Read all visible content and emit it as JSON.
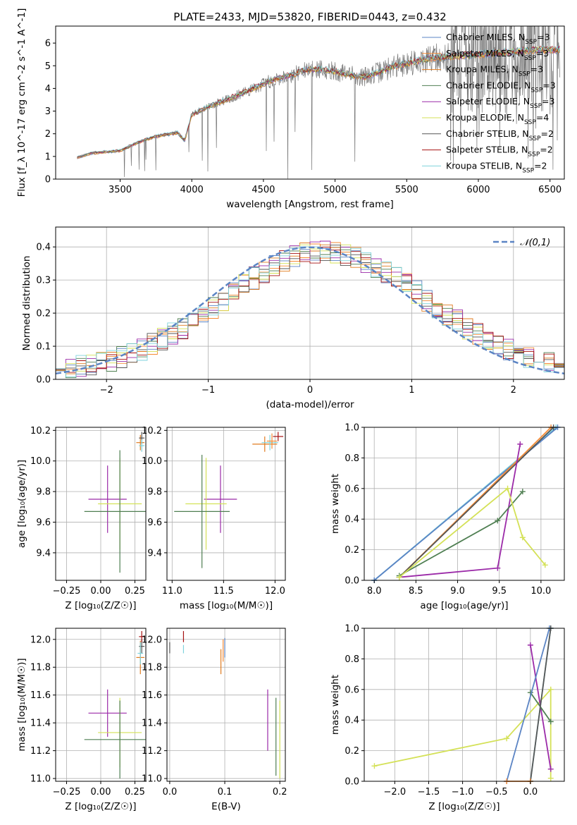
{
  "figure_title": "PLATE=2433, MJD=53820, FIBERID=0443, z=0.432",
  "colors": {
    "chabrier_miles": "#5b84c4",
    "salpeter_miles": "#f58a34",
    "kroupa_miles": "#e07b1f",
    "chabrier_elodie": "#4f7f52",
    "salpeter_elodie": "#9b2aa8",
    "kroupa_elodie": "#d4e157",
    "chabrier_stelib": "#555555",
    "salpeter_stelib": "#a61212",
    "kroupa_stelib": "#7fd3dc",
    "data": "#777777",
    "gaussian": "#5b84c4",
    "grid": "#b0b0b0"
  },
  "chart_data": [
    {
      "id": "spectrum",
      "type": "line",
      "xlabel": "wavelength [Angstrom, rest frame]",
      "ylabel": "Flux [f_λ 10^-17 erg cm^-2 s^-1 A^-1]",
      "xlim": [
        3050,
        6600
      ],
      "ylim": [
        0,
        6.75
      ],
      "xticks": [
        3500,
        4000,
        4500,
        5000,
        5500,
        6000,
        6500
      ],
      "yticks": [
        0,
        1,
        2,
        3,
        4,
        5,
        6
      ],
      "grid": false,
      "legend_position": "upper-right",
      "legend": [
        {
          "model": "Chabrier MILES",
          "n_ssp": "3",
          "color_key": "chabrier_miles"
        },
        {
          "model": "Salpeter MILES",
          "n_ssp": "3",
          "color_key": "salpeter_miles"
        },
        {
          "model": "Kroupa MILES",
          "n_ssp": "3",
          "color_key": "kroupa_miles"
        },
        {
          "model": "Chabrier ELODIE",
          "n_ssp": "3",
          "color_key": "chabrier_elodie"
        },
        {
          "model": "Salpeter ELODIE",
          "n_ssp": "3",
          "color_key": "salpeter_elodie"
        },
        {
          "model": "Kroupa ELODIE",
          "n_ssp": "4",
          "color_key": "kroupa_elodie"
        },
        {
          "model": "Chabrier STELIB",
          "n_ssp": "2",
          "color_key": "chabrier_stelib"
        },
        {
          "model": "Salpeter STELIB",
          "n_ssp": "2",
          "color_key": "salpeter_stelib"
        },
        {
          "model": "Kroupa STELIB",
          "n_ssp": "2",
          "color_key": "kroupa_stelib"
        }
      ],
      "continuum": {
        "x": [
          3200,
          3300,
          3400,
          3500,
          3600,
          3700,
          3800,
          3900,
          3950,
          4000,
          4100,
          4200,
          4300,
          4400,
          4500,
          4600,
          4700,
          4800,
          4900,
          5000,
          5100,
          5200,
          5300,
          5400,
          5500,
          5600,
          5700,
          5800,
          5900,
          6000,
          6100,
          6200,
          6300,
          6400,
          6500,
          6570
        ],
        "y": [
          0.95,
          1.15,
          1.2,
          1.25,
          1.55,
          1.8,
          1.95,
          2.05,
          1.7,
          2.85,
          3.15,
          3.4,
          3.65,
          3.9,
          4.2,
          4.45,
          4.6,
          4.8,
          4.85,
          4.75,
          4.6,
          4.5,
          4.7,
          4.95,
          5.1,
          5.25,
          5.35,
          5.4,
          5.45,
          5.5,
          5.55,
          5.6,
          5.65,
          5.7,
          5.7,
          5.7
        ]
      }
    },
    {
      "id": "residuals",
      "type": "line",
      "xlabel": "(data-model)/error",
      "ylabel": "Normed distribution",
      "xlim": [
        -2.5,
        2.5
      ],
      "ylim": [
        0,
        0.46
      ],
      "xticks": [
        -2,
        -1,
        0,
        1,
        2
      ],
      "yticks": [
        0.0,
        0.1,
        0.2,
        0.3,
        0.4
      ],
      "grid": true,
      "legend_position": "upper-right",
      "legend_label": "𝒩(0,1)",
      "gaussian": {
        "mean": 0,
        "sigma": 1
      }
    },
    {
      "id": "age-vs-Z",
      "type": "scatter",
      "xlabel": "Z [log₁₀(Z/Z☉)]",
      "ylabel": "age  [log₁₀(age/yr)]",
      "xlim": [
        -0.33,
        0.33
      ],
      "ylim": [
        9.22,
        10.22
      ],
      "xticks": [
        -0.25,
        0.0,
        0.25
      ],
      "yticks": [
        9.4,
        9.6,
        9.8,
        10.0,
        10.2
      ],
      "grid": true,
      "points": [
        {
          "x": 0.05,
          "y": 9.75,
          "xerr": 0.14,
          "yerr": 0.22,
          "color_key": "salpeter_elodie"
        },
        {
          "x": 0.14,
          "y": 9.72,
          "xerr": 0.16,
          "yerr": 0.3,
          "color_key": "kroupa_elodie"
        },
        {
          "x": 0.14,
          "y": 9.67,
          "xerr": 0.26,
          "yerr": 0.4,
          "color_key": "chabrier_elodie"
        },
        {
          "x": 0.29,
          "y": 10.12,
          "xerr": 0.03,
          "yerr": 0.05,
          "color_key": "kroupa_miles"
        },
        {
          "x": 0.3,
          "y": 10.15,
          "xerr": 0.02,
          "yerr": 0.04,
          "color_key": "chabrier_stelib"
        },
        {
          "x": 0.3,
          "y": 10.1,
          "xerr": 0.02,
          "yerr": 0.04,
          "color_key": "kroupa_stelib"
        }
      ]
    },
    {
      "id": "age-vs-mass",
      "type": "scatter",
      "xlabel": "mass [log₁₀(M/M☉)]",
      "ylabel": "",
      "xlim": [
        10.95,
        12.1
      ],
      "ylim": [
        9.22,
        10.22
      ],
      "xticks": [
        11.0,
        11.5,
        12.0
      ],
      "yticks": [
        9.4,
        9.6,
        9.8,
        10.0,
        10.2
      ],
      "grid": true,
      "points": [
        {
          "x": 11.47,
          "y": 9.75,
          "xerr": 0.16,
          "yerr": 0.22,
          "color_key": "salpeter_elodie"
        },
        {
          "x": 11.33,
          "y": 9.72,
          "xerr": 0.2,
          "yerr": 0.3,
          "color_key": "kroupa_elodie"
        },
        {
          "x": 11.29,
          "y": 9.67,
          "xerr": 0.27,
          "yerr": 0.37,
          "color_key": "chabrier_elodie"
        },
        {
          "x": 11.9,
          "y": 10.11,
          "xerr": 0.12,
          "yerr": 0.05,
          "color_key": "kroupa_miles"
        },
        {
          "x": 11.95,
          "y": 10.12,
          "xerr": 0.08,
          "yerr": 0.05,
          "color_key": "kroupa_stelib"
        },
        {
          "x": 12.03,
          "y": 10.16,
          "xerr": 0.05,
          "yerr": 0.03,
          "color_key": "salpeter_stelib"
        },
        {
          "x": 11.97,
          "y": 10.13,
          "xerr": 0.05,
          "yerr": 0.05,
          "color_key": "salpeter_miles"
        }
      ]
    },
    {
      "id": "mass-weight-vs-age",
      "type": "line",
      "xlabel": "age  [log₁₀(age/yr)]",
      "ylabel": "mass weight",
      "xlim": [
        7.88,
        10.28
      ],
      "ylim": [
        0,
        1.0
      ],
      "xticks": [
        8.0,
        8.5,
        9.0,
        9.5,
        10.0
      ],
      "yticks": [
        0.0,
        0.2,
        0.4,
        0.6,
        0.8,
        1.0
      ],
      "grid": true,
      "series": [
        {
          "color_key": "kroupa_stelib",
          "x": [
            8.0,
            10.18
          ],
          "y": [
            0.0,
            1.0
          ]
        },
        {
          "color_key": "chabrier_miles",
          "x": [
            8.0,
            10.2
          ],
          "y": [
            0.0,
            1.0
          ]
        },
        {
          "color_key": "salpeter_miles",
          "x": [
            8.3,
            10.12
          ],
          "y": [
            0.02,
            1.0
          ]
        },
        {
          "color_key": "chabrier_stelib",
          "x": [
            8.3,
            10.15
          ],
          "y": [
            0.02,
            1.0
          ]
        },
        {
          "color_key": "salpeter_elodie",
          "x": [
            8.3,
            9.48,
            9.75
          ],
          "y": [
            0.02,
            0.08,
            0.89
          ]
        },
        {
          "color_key": "chabrier_elodie",
          "x": [
            8.3,
            9.48,
            9.78
          ],
          "y": [
            0.03,
            0.39,
            0.58
          ]
        },
        {
          "color_key": "kroupa_elodie",
          "x": [
            8.3,
            9.6,
            9.78,
            10.05
          ],
          "y": [
            0.02,
            0.6,
            0.28,
            0.1
          ]
        }
      ]
    },
    {
      "id": "mass-vs-Z",
      "type": "scatter",
      "xlabel": "Z [log₁₀(Z/Z☉)]",
      "ylabel": "mass [log₁₀(M/M☉)]",
      "xlim": [
        -0.33,
        0.33
      ],
      "ylim": [
        10.98,
        12.08
      ],
      "xticks": [
        -0.25,
        0.0,
        0.25
      ],
      "yticks": [
        11.0,
        11.2,
        11.4,
        11.6,
        11.8,
        12.0
      ],
      "grid": true,
      "points": [
        {
          "x": 0.05,
          "y": 11.47,
          "xerr": 0.14,
          "yerr": 0.17,
          "color_key": "salpeter_elodie"
        },
        {
          "x": 0.14,
          "y": 11.33,
          "xerr": 0.16,
          "yerr": 0.25,
          "color_key": "kroupa_elodie"
        },
        {
          "x": 0.14,
          "y": 11.28,
          "xerr": 0.26,
          "yerr": 0.28,
          "color_key": "chabrier_elodie"
        },
        {
          "x": 0.29,
          "y": 11.87,
          "xerr": 0.03,
          "yerr": 0.12,
          "color_key": "kroupa_miles"
        },
        {
          "x": 0.3,
          "y": 11.95,
          "xerr": 0.02,
          "yerr": 0.05,
          "color_key": "chabrier_stelib"
        },
        {
          "x": 0.3,
          "y": 12.02,
          "xerr": 0.02,
          "yerr": 0.04,
          "color_key": "salpeter_stelib"
        },
        {
          "x": 0.29,
          "y": 11.9,
          "xerr": 0.02,
          "yerr": 0.08,
          "color_key": "kroupa_stelib"
        }
      ]
    },
    {
      "id": "mass-vs-ebv",
      "type": "scatter",
      "xlabel": "E(B-V)",
      "ylabel": "",
      "xlim": [
        -0.005,
        0.21
      ],
      "ylim": [
        10.98,
        12.08
      ],
      "xticks": [
        0.0,
        0.1,
        0.2
      ],
      "yticks": [
        11.0,
        11.2,
        11.4,
        11.6,
        11.8,
        12.0
      ],
      "grid": true,
      "points": [
        {
          "x": 0.178,
          "y": 11.42,
          "xerr": 0,
          "yerr": 0.22,
          "color_key": "salpeter_elodie"
        },
        {
          "x": 0.2,
          "y": 11.28,
          "xerr": 0,
          "yerr": 0.28,
          "color_key": "kroupa_elodie"
        },
        {
          "x": 0.193,
          "y": 11.3,
          "xerr": 0,
          "yerr": 0.28,
          "color_key": "chabrier_elodie"
        },
        {
          "x": 0.093,
          "y": 11.84,
          "xerr": 0,
          "yerr": 0.09,
          "color_key": "kroupa_miles"
        },
        {
          "x": 0.097,
          "y": 11.92,
          "xerr": 0,
          "yerr": 0.08,
          "color_key": "salpeter_miles"
        },
        {
          "x": 0.1,
          "y": 11.94,
          "xerr": 0,
          "yerr": 0.07,
          "color_key": "chabrier_miles"
        },
        {
          "x": 0.025,
          "y": 12.02,
          "xerr": 0,
          "yerr": 0.04,
          "color_key": "salpeter_stelib"
        },
        {
          "x": 0.025,
          "y": 11.93,
          "xerr": 0,
          "yerr": 0.03,
          "color_key": "kroupa_stelib"
        },
        {
          "x": 0.0,
          "y": 11.94,
          "xerr": 0,
          "yerr": 0.04,
          "color_key": "chabrier_stelib"
        }
      ]
    },
    {
      "id": "mass-weight-vs-Z",
      "type": "line",
      "xlabel": "Z [log₁₀(Z/Z☉)]",
      "ylabel": "mass weight",
      "xlim": [
        -2.45,
        0.5
      ],
      "ylim": [
        0,
        1.0
      ],
      "xticks": [
        -2.0,
        -1.5,
        -1.0,
        -0.5,
        0.0
      ],
      "yticks": [
        0.0,
        0.2,
        0.4,
        0.6,
        0.8,
        1.0
      ],
      "grid": true,
      "series": [
        {
          "color_key": "kroupa_elodie",
          "x": [
            -2.3,
            -0.35,
            0.3,
            0.3
          ],
          "y": [
            0.1,
            0.28,
            0.6,
            0.02
          ]
        },
        {
          "color_key": "salpeter_elodie",
          "x": [
            0.0,
            0.3
          ],
          "y": [
            0.89,
            0.08
          ]
        },
        {
          "color_key": "chabrier_elodie",
          "x": [
            0.0,
            0.3
          ],
          "y": [
            0.58,
            0.39
          ]
        },
        {
          "color_key": "chabrier_miles",
          "x": [
            -0.35,
            0.28
          ],
          "y": [
            0.0,
            1.0
          ]
        },
        {
          "color_key": "kroupa_stelib",
          "x": [
            0.0,
            0.3
          ],
          "y": [
            0.0,
            1.0
          ]
        },
        {
          "color_key": "chabrier_stelib",
          "x": [
            0.0,
            0.3
          ],
          "y": [
            0.0,
            1.0
          ]
        },
        {
          "color_key": "salpeter_miles",
          "x": [
            -0.35,
            0.0
          ],
          "y": [
            0.0,
            0.0
          ]
        }
      ]
    }
  ]
}
